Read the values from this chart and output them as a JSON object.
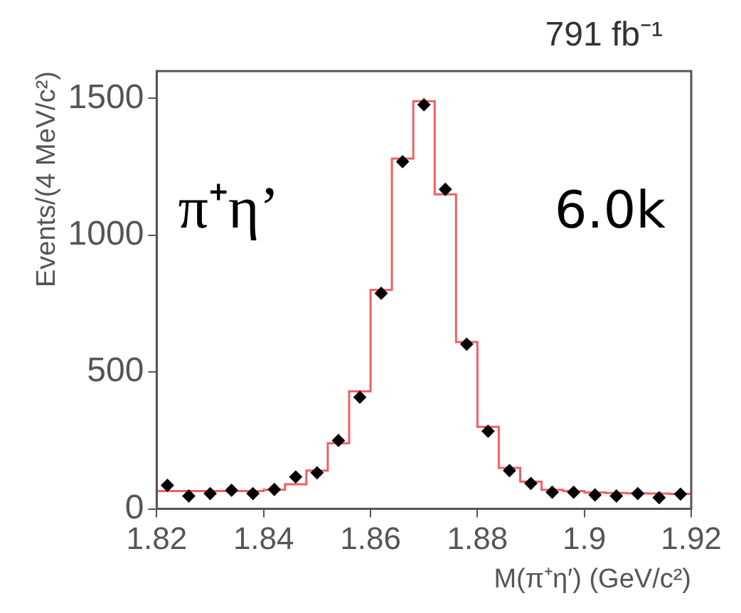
{
  "chart_data": {
    "type": "histogram",
    "xlabel": "M(π⁺η′) (GeV/c²)",
    "ylabel": "Events/(4 MeV/c²)",
    "annotations": [
      "791 fb⁻¹",
      "π⁺η’",
      "6.0k"
    ],
    "xlim": [
      1.82,
      1.92
    ],
    "xticks": [
      1.82,
      1.84,
      1.86,
      1.88,
      1.9,
      1.92
    ],
    "ylim": [
      0,
      1600
    ],
    "yticks": [
      0,
      500,
      1000,
      1500
    ],
    "grid": false,
    "legend": false,
    "series": [
      {
        "color": "#f06060",
        "bins": [
          1.82,
          1.824,
          1.828,
          1.832,
          1.836,
          1.84,
          1.844,
          1.848,
          1.852,
          1.856,
          1.86,
          1.864,
          1.868,
          1.872,
          1.876,
          1.88,
          1.884,
          1.888,
          1.892,
          1.896,
          1.9,
          1.904,
          1.908,
          1.912,
          1.916,
          1.92
        ],
        "values": [
          65,
          65,
          65,
          65,
          65,
          70,
          90,
          140,
          240,
          430,
          800,
          1280,
          1490,
          1150,
          610,
          300,
          150,
          100,
          70,
          65,
          60,
          58,
          57,
          56,
          55
        ]
      },
      {
        "type": "scatter",
        "color": "#000000",
        "marker": "diamond",
        "x": [
          1.822,
          1.826,
          1.83,
          1.834,
          1.838,
          1.842,
          1.846,
          1.85,
          1.854,
          1.858,
          1.862,
          1.866,
          1.87,
          1.874,
          1.878,
          1.882,
          1.886,
          1.89,
          1.894,
          1.898,
          1.902,
          1.906,
          1.91,
          1.914,
          1.918
        ],
        "values": [
          86,
          47,
          56,
          68,
          56,
          71,
          117,
          132,
          250,
          408,
          788,
          1269,
          1477,
          1168,
          602,
          284,
          140,
          93,
          61,
          61,
          51,
          47,
          56,
          41,
          54
        ]
      }
    ]
  }
}
